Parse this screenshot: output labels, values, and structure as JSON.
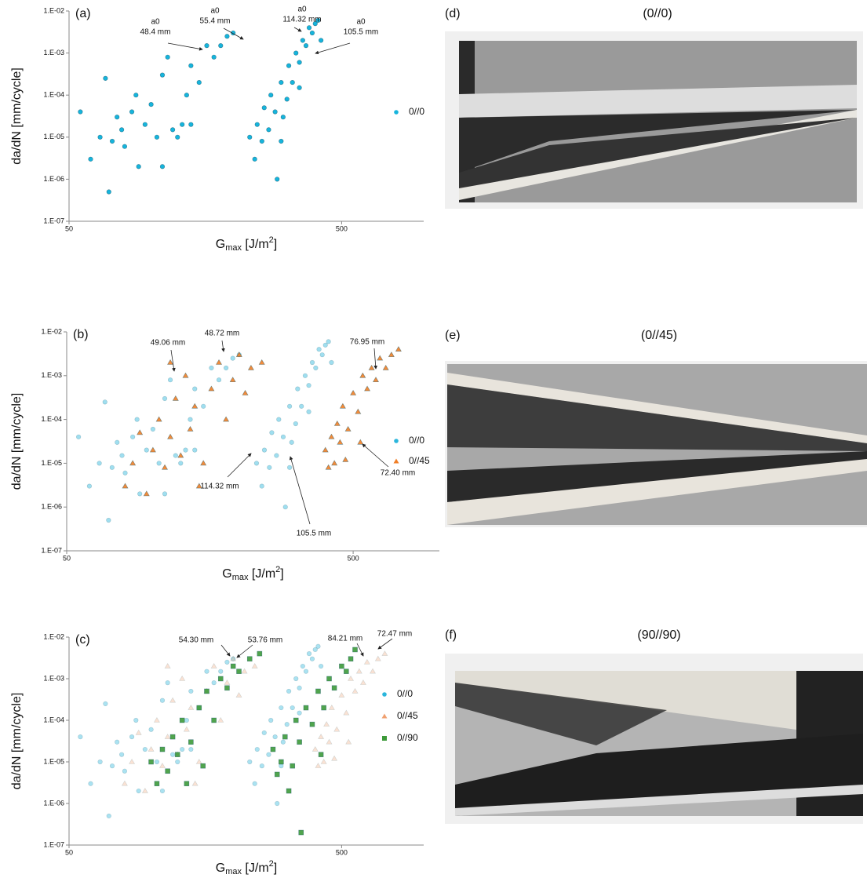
{
  "chart_data": [
    {
      "type": "scatter",
      "panel": "(a)",
      "xscale": "log",
      "yscale": "log",
      "xlabel": [
        "G",
        "max",
        " [J/m",
        "2",
        "]"
      ],
      "ylabel": "da/dN [mm/cycle]",
      "xlim": [
        50,
        1000
      ],
      "xticks": [
        50,
        500
      ],
      "ylim": [
        1e-07,
        0.01
      ],
      "yticks": [
        {
          "value": 1e-07,
          "label": "1.E-07"
        },
        {
          "value": 1e-06,
          "label": "1.E-06"
        },
        {
          "value": 1e-05,
          "label": "1.E-05"
        },
        {
          "value": 0.0001,
          "label": "1.E-04"
        },
        {
          "value": 0.001,
          "label": "1.E-03"
        },
        {
          "value": 0.01,
          "label": "1.E-02"
        }
      ],
      "series": [
        {
          "name": "0//0",
          "color": "#16b4dc",
          "marker": "o",
          "alpha": 1,
          "x": [
            55,
            60,
            65,
            68,
            70,
            72,
            75,
            78,
            80,
            85,
            88,
            90,
            95,
            100,
            105,
            110,
            115,
            120,
            125,
            130,
            135,
            140,
            150,
            160,
            170,
            180,
            190,
            200,
            110,
            140,
            230,
            240,
            245,
            255,
            260,
            270,
            275,
            285,
            290,
            300,
            305,
            315,
            320,
            330,
            340,
            350,
            360,
            370,
            380,
            390,
            400,
            410,
            420,
            300,
            350
          ],
          "values": [
            4e-05,
            3e-06,
            1e-05,
            0.00025,
            5e-07,
            8e-06,
            3e-05,
            1.5e-05,
            6e-06,
            4e-05,
            0.0001,
            2e-06,
            2e-05,
            6e-05,
            1e-05,
            0.0003,
            0.0008,
            1.5e-05,
            1e-05,
            2e-05,
            0.0001,
            0.0005,
            0.0002,
            0.0015,
            0.0008,
            0.0015,
            0.0025,
            0.003,
            2e-06,
            2e-05,
            1e-05,
            3e-06,
            2e-05,
            8e-06,
            5e-05,
            1.5e-05,
            0.0001,
            4e-05,
            1e-06,
            0.0002,
            3e-05,
            8e-05,
            0.0005,
            0.0002,
            0.001,
            0.0006,
            0.002,
            0.0015,
            0.004,
            0.003,
            0.005,
            0.006,
            0.002,
            8e-06,
            0.00015
          ]
        }
      ],
      "annotations": [
        {
          "lines": [
            "a0",
            "48.4 mm"
          ]
        },
        {
          "lines": [
            "a0",
            "55.4 mm"
          ]
        },
        {
          "lines": [
            "a0",
            "114.32 mm"
          ]
        },
        {
          "lines": [
            "a0",
            "105.5 mm"
          ]
        }
      ]
    },
    {
      "type": "scatter",
      "panel": "(b)",
      "xscale": "log",
      "yscale": "log",
      "xlabel": [
        "G",
        "max",
        " [J/m",
        "2",
        "]"
      ],
      "ylabel": "da/dN [mm/cycle]",
      "xlim": [
        50,
        1000
      ],
      "xticks": [
        50,
        500
      ],
      "ylim": [
        1e-07,
        0.01
      ],
      "yticks": [
        {
          "value": 1e-07,
          "label": "1.E-07"
        },
        {
          "value": 1e-06,
          "label": "1.E-06"
        },
        {
          "value": 1e-05,
          "label": "1.E-05"
        },
        {
          "value": 0.0001,
          "label": "1.E-04"
        },
        {
          "value": 0.001,
          "label": "1.E-03"
        },
        {
          "value": 0.01,
          "label": "1.E-02"
        }
      ],
      "series": [
        {
          "name": "0//0",
          "color": "#2bb6dc",
          "marker": "o",
          "alpha": 0.45,
          "x": [
            55,
            60,
            65,
            68,
            70,
            72,
            75,
            78,
            80,
            85,
            88,
            90,
            95,
            100,
            105,
            110,
            115,
            120,
            125,
            130,
            135,
            140,
            150,
            160,
            170,
            180,
            190,
            200,
            110,
            140,
            230,
            240,
            245,
            255,
            260,
            270,
            275,
            285,
            290,
            300,
            305,
            315,
            320,
            330,
            340,
            350,
            360,
            370,
            380,
            390,
            400,
            410,
            420,
            300,
            350
          ],
          "values": [
            4e-05,
            3e-06,
            1e-05,
            0.00025,
            5e-07,
            8e-06,
            3e-05,
            1.5e-05,
            6e-06,
            4e-05,
            0.0001,
            2e-06,
            2e-05,
            6e-05,
            1e-05,
            0.0003,
            0.0008,
            1.5e-05,
            1e-05,
            2e-05,
            0.0001,
            0.0005,
            0.0002,
            0.0015,
            0.0008,
            0.0015,
            0.0025,
            0.003,
            2e-06,
            2e-05,
            1e-05,
            3e-06,
            2e-05,
            8e-06,
            5e-05,
            1.5e-05,
            0.0001,
            4e-05,
            1e-06,
            0.0002,
            3e-05,
            8e-05,
            0.0005,
            0.0002,
            0.001,
            0.0006,
            0.002,
            0.0015,
            0.004,
            0.003,
            0.005,
            0.006,
            0.002,
            8e-06,
            0.00015
          ]
        },
        {
          "name": "0//45",
          "color": "#f07e26",
          "marker": "^",
          "alpha": 0.9,
          "x": [
            80,
            85,
            90,
            95,
            100,
            105,
            110,
            115,
            120,
            125,
            130,
            135,
            140,
            145,
            150,
            160,
            170,
            180,
            190,
            200,
            210,
            220,
            240,
            115,
            400,
            410,
            420,
            430,
            440,
            450,
            460,
            480,
            500,
            520,
            540,
            560,
            580,
            600,
            620,
            650,
            680,
            720,
            470,
            530
          ],
          "values": [
            3e-06,
            1e-05,
            5e-05,
            2e-06,
            2e-05,
            0.0001,
            8e-06,
            4e-05,
            0.0003,
            1.5e-05,
            0.001,
            6e-05,
            0.0002,
            3e-06,
            1e-05,
            0.0005,
            0.002,
            0.0001,
            0.0008,
            0.003,
            0.0004,
            0.0015,
            0.002,
            0.002,
            2e-05,
            8e-06,
            4e-05,
            1e-05,
            8e-05,
            3e-05,
            0.0002,
            6e-05,
            0.0004,
            0.00015,
            0.001,
            0.0005,
            0.0015,
            0.0008,
            0.0025,
            0.0015,
            0.003,
            0.004,
            1.2e-05,
            3e-05
          ]
        }
      ],
      "annotations": [
        {
          "lines": [
            "49.06 mm"
          ]
        },
        {
          "lines": [
            "48.72 mm"
          ]
        },
        {
          "lines": [
            "76.95 mm"
          ]
        },
        {
          "lines": [
            "72.40 mm"
          ]
        },
        {
          "lines": [
            "114.32 mm"
          ]
        },
        {
          "lines": [
            "105.5 mm"
          ]
        }
      ]
    },
    {
      "type": "scatter",
      "panel": "(c)",
      "xscale": "log",
      "yscale": "log",
      "xlabel": [
        "G",
        "max",
        " [J/m",
        "2",
        "]"
      ],
      "ylabel": "da/dN [mm/cycle]",
      "xlim": [
        50,
        1000
      ],
      "xticks": [
        50,
        500
      ],
      "ylim": [
        1e-07,
        0.01
      ],
      "yticks": [
        {
          "value": 1e-07,
          "label": "1.E-07"
        },
        {
          "value": 1e-06,
          "label": "1.E-06"
        },
        {
          "value": 1e-05,
          "label": "1.E-05"
        },
        {
          "value": 0.0001,
          "label": "1.E-04"
        },
        {
          "value": 0.001,
          "label": "1.E-03"
        },
        {
          "value": 0.01,
          "label": "1.E-02"
        }
      ],
      "series": [
        {
          "name": "0//0",
          "color": "#2bb6dc",
          "marker": "o",
          "alpha": 0.4,
          "x": [
            55,
            60,
            65,
            68,
            70,
            72,
            75,
            78,
            80,
            85,
            88,
            90,
            95,
            100,
            105,
            110,
            115,
            120,
            125,
            130,
            135,
            140,
            150,
            160,
            170,
            180,
            190,
            200,
            110,
            140,
            230,
            240,
            245,
            255,
            260,
            270,
            275,
            285,
            290,
            300,
            305,
            315,
            320,
            330,
            340,
            350,
            360,
            370,
            380,
            390,
            400,
            410,
            420,
            300,
            350
          ],
          "values": [
            4e-05,
            3e-06,
            1e-05,
            0.00025,
            5e-07,
            8e-06,
            3e-05,
            1.5e-05,
            6e-06,
            4e-05,
            0.0001,
            2e-06,
            2e-05,
            6e-05,
            1e-05,
            0.0003,
            0.0008,
            1.5e-05,
            1e-05,
            2e-05,
            0.0001,
            0.0005,
            0.0002,
            0.0015,
            0.0008,
            0.0015,
            0.0025,
            0.003,
            2e-06,
            2e-05,
            1e-05,
            3e-06,
            2e-05,
            8e-06,
            5e-05,
            1.5e-05,
            0.0001,
            4e-05,
            1e-06,
            0.0002,
            3e-05,
            8e-05,
            0.0005,
            0.0002,
            0.001,
            0.0006,
            0.002,
            0.0015,
            0.004,
            0.003,
            0.005,
            0.006,
            0.002,
            8e-06,
            0.00015
          ]
        },
        {
          "name": "0//45",
          "color": "#f0a070",
          "marker": "^",
          "alpha": 0.3,
          "x": [
            80,
            85,
            90,
            95,
            100,
            105,
            110,
            115,
            120,
            125,
            130,
            135,
            140,
            145,
            150,
            160,
            170,
            180,
            190,
            200,
            210,
            220,
            240,
            115,
            400,
            410,
            420,
            430,
            440,
            450,
            460,
            480,
            500,
            520,
            540,
            560,
            580,
            600,
            620,
            650,
            680,
            720,
            470,
            530
          ],
          "values": [
            3e-06,
            1e-05,
            5e-05,
            2e-06,
            2e-05,
            0.0001,
            8e-06,
            4e-05,
            0.0003,
            1.5e-05,
            0.001,
            6e-05,
            0.0002,
            3e-06,
            1e-05,
            0.0005,
            0.002,
            0.0001,
            0.0008,
            0.003,
            0.0004,
            0.0015,
            0.002,
            0.002,
            2e-05,
            8e-06,
            4e-05,
            1e-05,
            8e-05,
            3e-05,
            0.0002,
            6e-05,
            0.0004,
            0.00015,
            0.001,
            0.0005,
            0.0015,
            0.0008,
            0.0025,
            0.0015,
            0.003,
            0.004,
            1.2e-05,
            3e-05
          ]
        },
        {
          "name": "0//90",
          "color": "#3d9a3a",
          "marker": "s",
          "alpha": 0.9,
          "x": [
            100,
            105,
            110,
            115,
            120,
            125,
            130,
            135,
            140,
            150,
            155,
            160,
            170,
            180,
            190,
            200,
            210,
            230,
            250,
            280,
            290,
            300,
            310,
            320,
            330,
            340,
            350,
            355,
            370,
            390,
            410,
            430,
            450,
            470,
            500,
            520,
            540,
            560,
            420
          ],
          "values": [
            1e-05,
            3e-06,
            2e-05,
            6e-06,
            4e-05,
            1.5e-05,
            0.0001,
            3e-06,
            3e-05,
            0.0002,
            8e-06,
            0.0005,
            0.0001,
            0.001,
            0.0006,
            0.002,
            0.0015,
            0.003,
            0.004,
            2e-05,
            5e-06,
            1e-05,
            4e-05,
            2e-06,
            8e-06,
            0.0001,
            3e-05,
            2e-07,
            0.0002,
            8e-05,
            0.0005,
            0.0002,
            0.001,
            0.0006,
            0.002,
            0.0015,
            0.003,
            0.005,
            1.5e-05
          ]
        }
      ],
      "annotations": [
        {
          "lines": [
            "54.30 mm"
          ]
        },
        {
          "lines": [
            "53.76 mm"
          ]
        },
        {
          "lines": [
            "84.21 mm"
          ]
        },
        {
          "lines": [
            "72.47 mm"
          ]
        }
      ]
    }
  ],
  "photos": [
    {
      "label": "(d)",
      "title": "(0//0)"
    },
    {
      "label": "(e)",
      "title": "(0//45)"
    },
    {
      "label": "(f)",
      "title": "(90//90)"
    }
  ]
}
